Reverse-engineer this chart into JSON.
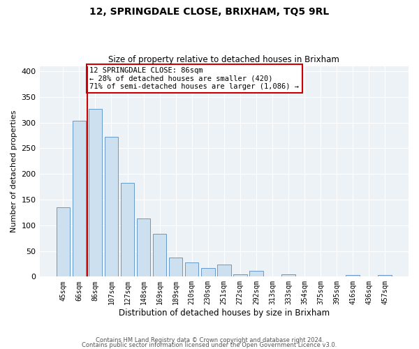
{
  "title1": "12, SPRINGDALE CLOSE, BRIXHAM, TQ5 9RL",
  "title2": "Size of property relative to detached houses in Brixham",
  "xlabel": "Distribution of detached houses by size in Brixham",
  "ylabel": "Number of detached properties",
  "categories": [
    "45sqm",
    "66sqm",
    "86sqm",
    "107sqm",
    "127sqm",
    "148sqm",
    "169sqm",
    "189sqm",
    "210sqm",
    "230sqm",
    "251sqm",
    "272sqm",
    "292sqm",
    "313sqm",
    "333sqm",
    "354sqm",
    "375sqm",
    "395sqm",
    "416sqm",
    "436sqm",
    "457sqm"
  ],
  "values": [
    135,
    303,
    327,
    272,
    182,
    113,
    83,
    37,
    27,
    17,
    24,
    4,
    11,
    0,
    5,
    0,
    1,
    0,
    3,
    0,
    3
  ],
  "highlight_index": 2,
  "bar_color": "#cce0f0",
  "bar_edge_color": "#6699cc",
  "highlight_line_color": "#cc0000",
  "annotation_line1": "12 SPRINGDALE CLOSE: 86sqm",
  "annotation_line2": "← 28% of detached houses are smaller (420)",
  "annotation_line3": "71% of semi-detached houses are larger (1,086) →",
  "annotation_box_edge": "#cc0000",
  "ylim": [
    0,
    410
  ],
  "yticks": [
    0,
    50,
    100,
    150,
    200,
    250,
    300,
    350,
    400
  ],
  "footer1": "Contains HM Land Registry data © Crown copyright and database right 2024.",
  "footer2": "Contains public sector information licensed under the Open Government Licence v3.0.",
  "bg_color": "#edf2f7"
}
